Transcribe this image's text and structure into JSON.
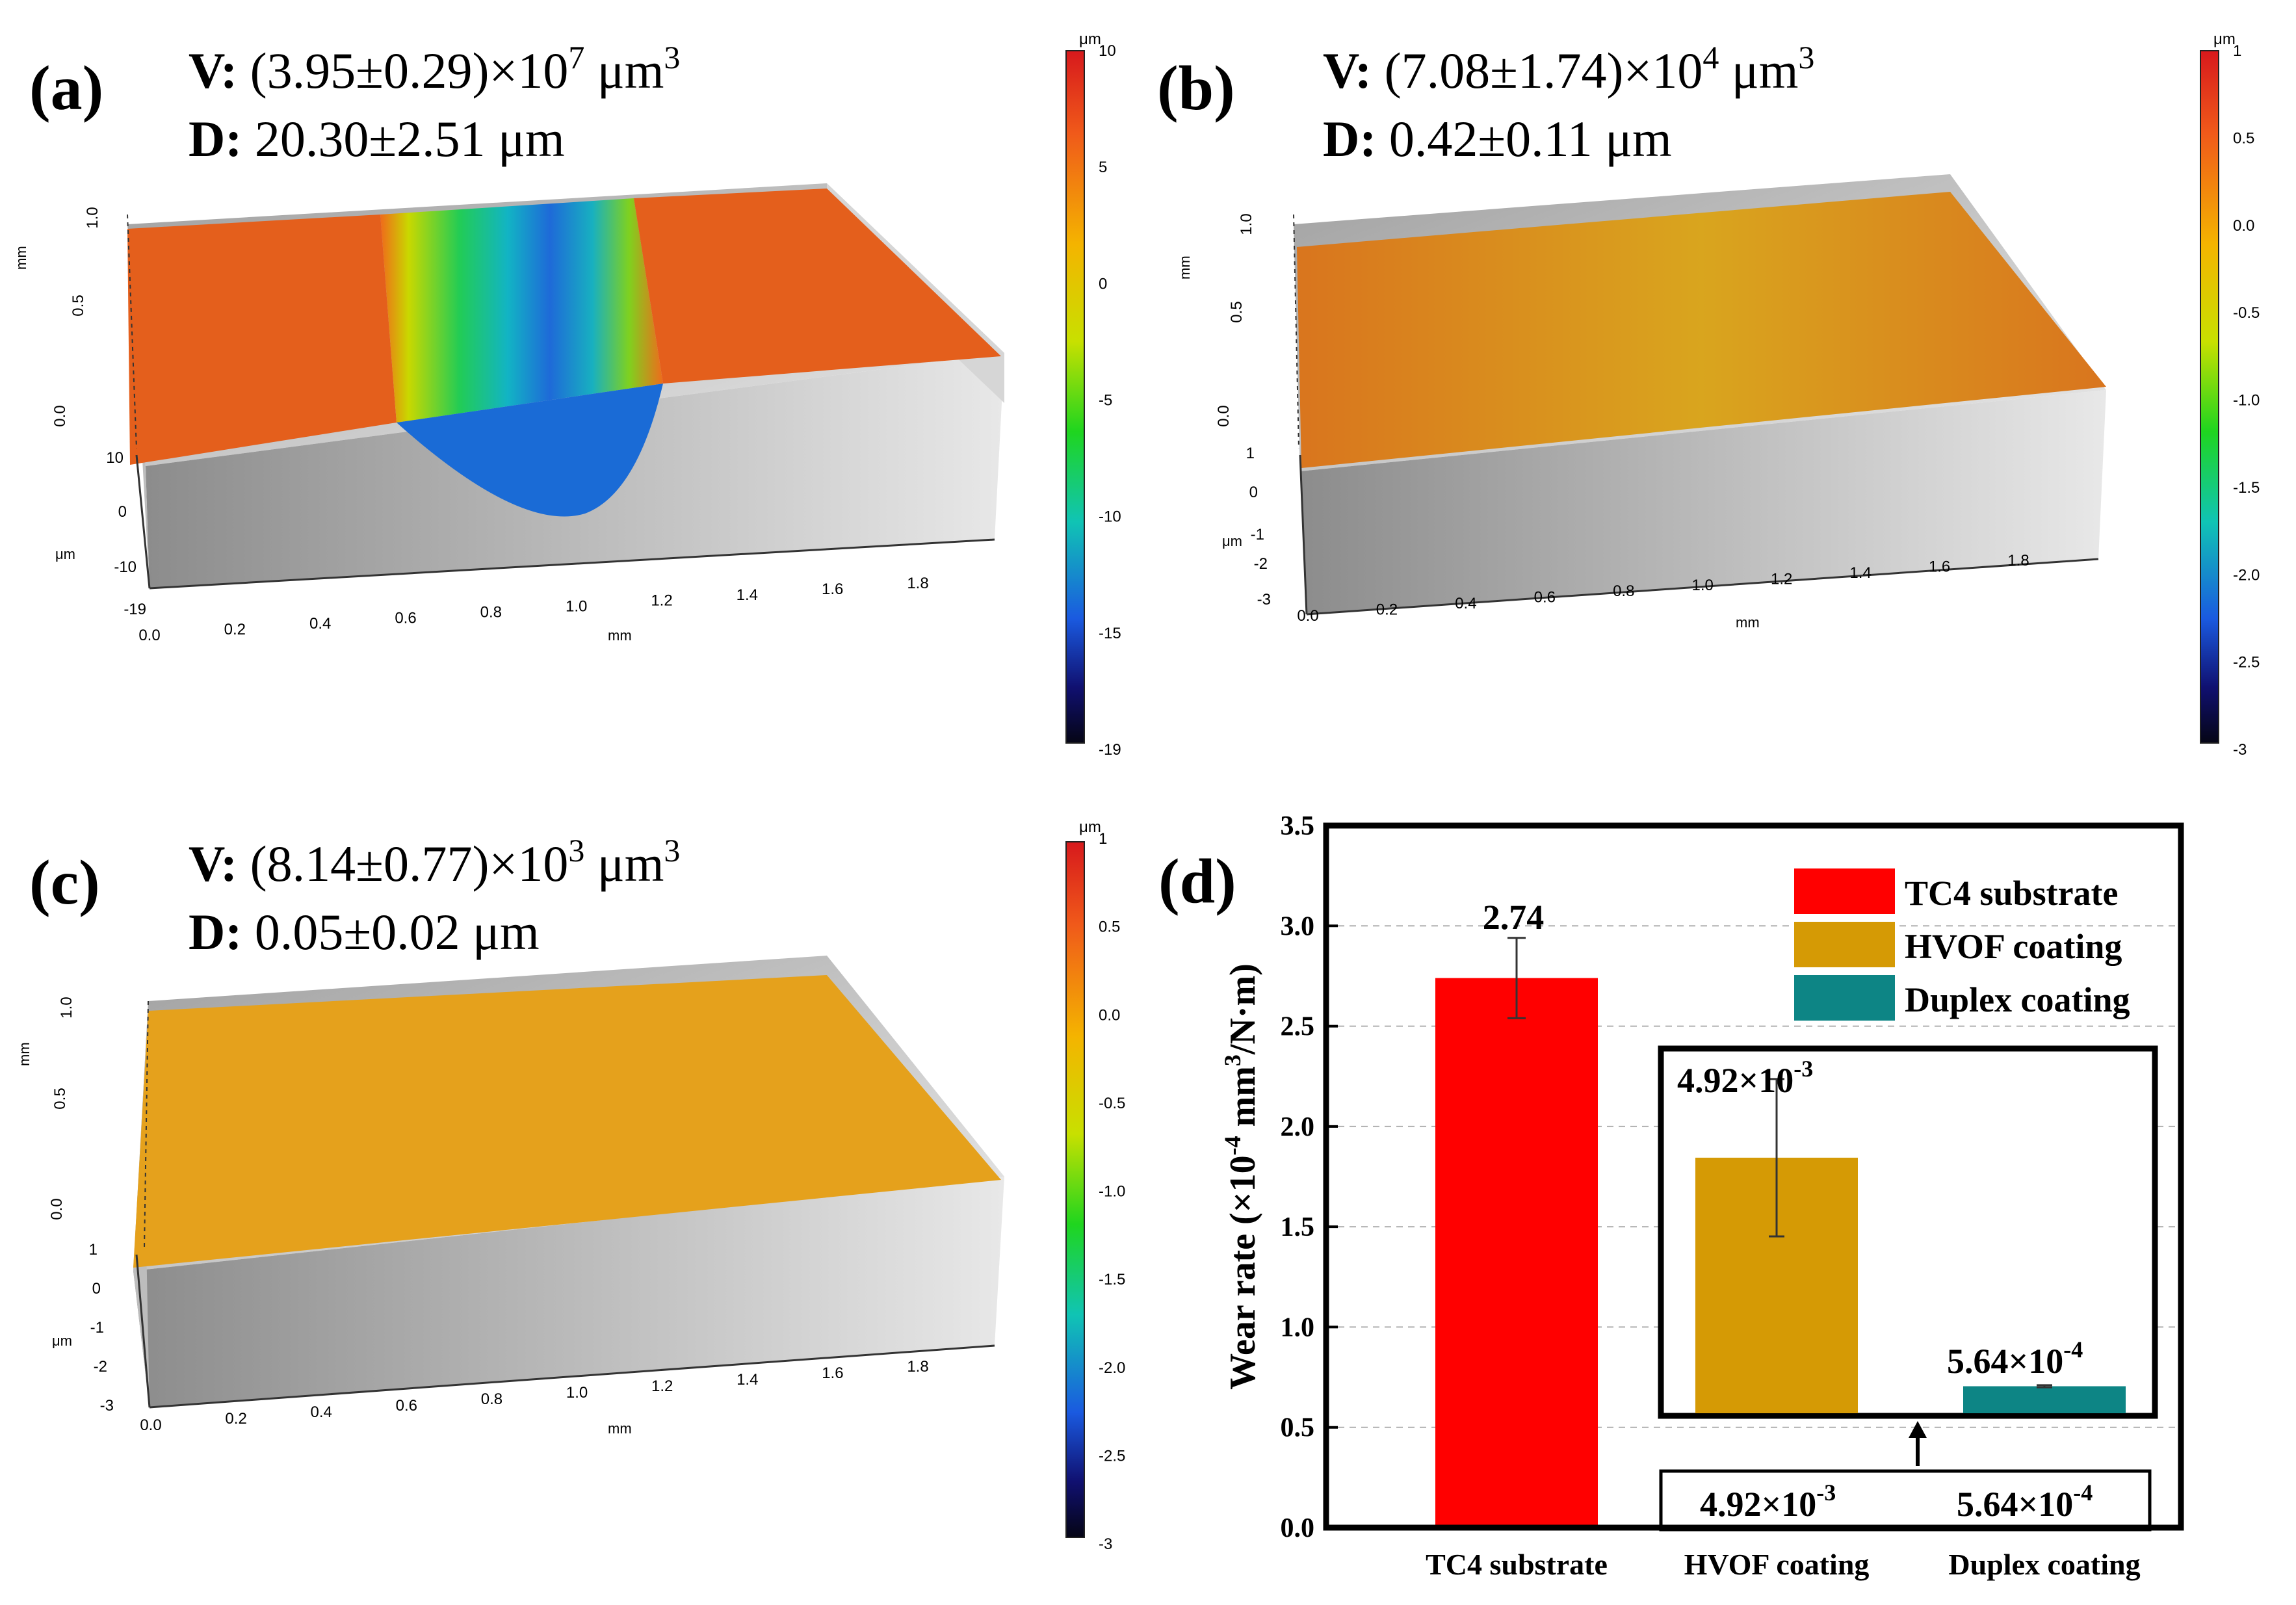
{
  "panels": [
    {
      "label": "(a)",
      "volume_prefix": "V:",
      "volume": "(3.95±0.29)×10",
      "volume_exp": "7",
      "volume_unit": "μm",
      "volume_unit_exp": "3",
      "depth_prefix": "D:",
      "depth": "20.30±2.51 μm",
      "colorbar_unit": "μm",
      "colorbar_ticks": [
        "10",
        "5",
        "0",
        "-5",
        "-10",
        "-15",
        "-19"
      ],
      "z_ticks": [
        "10",
        "0",
        "-10",
        "-19"
      ],
      "y_ticks": [
        "1.0",
        "0.5",
        "0.0"
      ],
      "x_ticks": [
        "0.0",
        "0.2",
        "0.4",
        "0.6",
        "0.8",
        "1.0",
        "1.2",
        "1.4",
        "1.6",
        "1.8"
      ],
      "x_unit": "mm",
      "y_unit": "mm",
      "z_unit": "μm"
    },
    {
      "label": "(b)",
      "volume_prefix": "V:",
      "volume": "(7.08±1.74)×10",
      "volume_exp": "4",
      "volume_unit": "μm",
      "volume_unit_exp": "3",
      "depth_prefix": "D:",
      "depth": "0.42±0.11 μm",
      "colorbar_unit": "μm",
      "colorbar_ticks": [
        "1",
        "0.5",
        "0.0",
        "-0.5",
        "-1.0",
        "-1.5",
        "-2.0",
        "-2.5",
        "-3"
      ],
      "z_ticks": [
        "1",
        "0",
        "-1",
        "-2",
        "-3"
      ],
      "y_ticks": [
        "1.0",
        "0.5",
        "0.0"
      ],
      "x_ticks": [
        "0.0",
        "0.2",
        "0.4",
        "0.6",
        "0.8",
        "1.0",
        "1.2",
        "1.4",
        "1.6",
        "1.8"
      ],
      "x_unit": "mm",
      "y_unit": "mm",
      "z_unit": "μm"
    },
    {
      "label": "(c)",
      "volume_prefix": "V:",
      "volume": "(8.14±0.77)×10",
      "volume_exp": "3",
      "volume_unit": "μm",
      "volume_unit_exp": "3",
      "depth_prefix": "D:",
      "depth": "0.05±0.02 μm",
      "colorbar_unit": "μm",
      "colorbar_ticks": [
        "1",
        "0.5",
        "0.0",
        "-0.5",
        "-1.0",
        "-1.5",
        "-2.0",
        "-2.5",
        "-3"
      ],
      "z_ticks": [
        "1",
        "0",
        "-1",
        "-2",
        "-3"
      ],
      "y_ticks": [
        "1.0",
        "0.5",
        "0.0"
      ],
      "x_ticks": [
        "0.0",
        "0.2",
        "0.4",
        "0.6",
        "0.8",
        "1.0",
        "1.2",
        "1.4",
        "1.6",
        "1.8"
      ],
      "x_unit": "mm",
      "y_unit": "mm",
      "z_unit": "μm"
    }
  ],
  "chart_data": {
    "type": "bar",
    "panel_label": "(d)",
    "categories": [
      "TC4 substrate",
      "HVOF coating",
      "Duplex coating"
    ],
    "values": [
      2.74,
      0.00492,
      0.000564
    ],
    "errors": [
      0.2,
      null,
      null
    ],
    "bar_labels": [
      "2.74",
      "",
      ""
    ],
    "colors": [
      "#ff0000",
      "#d59a05",
      "#0d8585"
    ],
    "ylabel": "Wear rate (×10",
    "ylabel_exp1": "-4",
    "ylabel_mid": " mm",
    "ylabel_exp2": "3",
    "ylabel_end": "/N·m)",
    "y_ticks": [
      "0.0",
      "0.5",
      "1.0",
      "1.5",
      "2.0",
      "2.5",
      "3.0",
      "3.5"
    ],
    "ylim": [
      0,
      3.5
    ],
    "grid": true,
    "legend_position": "top-right",
    "legend": [
      "TC4 substrate",
      "HVOF coating",
      "Duplex coating"
    ],
    "inset": {
      "categories": [
        "HVOF coating",
        "Duplex coating"
      ],
      "values": [
        0.00492,
        0.000564
      ],
      "errors": [
        0.0015,
        2e-05
      ],
      "labels": [
        "4.92×10",
        "5.64×10"
      ],
      "label_exps": [
        "-3",
        "-4"
      ],
      "colors": [
        "#d59a05",
        "#0d8585"
      ],
      "ylim": [
        0,
        0.007
      ]
    },
    "bottom_box": {
      "values": [
        "4.92×10",
        "5.64×10"
      ],
      "exps": [
        "-3",
        "-4"
      ]
    }
  }
}
